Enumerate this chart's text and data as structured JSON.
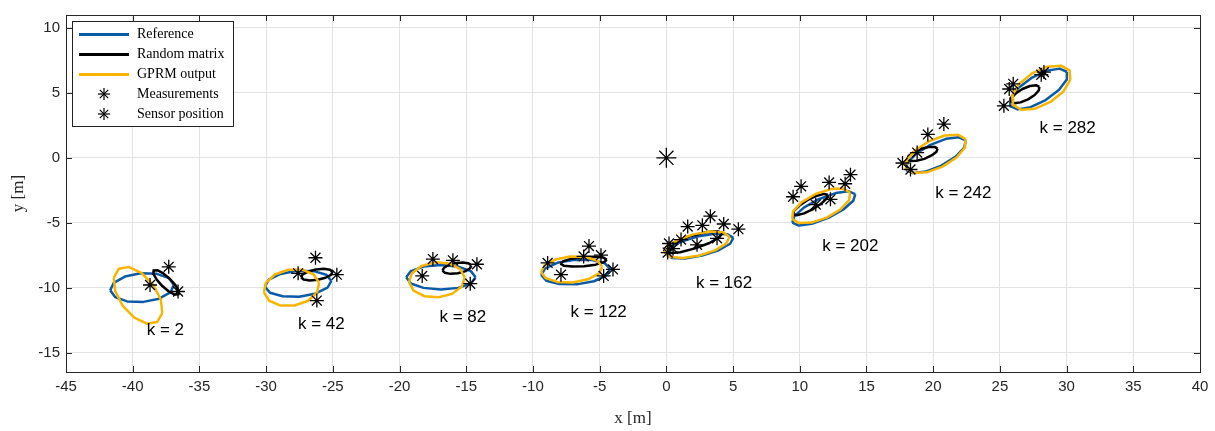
{
  "chart_data": {
    "type": "line",
    "xlabel": "x [m]",
    "ylabel": "y [m]",
    "xlim": [
      -45,
      40
    ],
    "ylim": [
      -16.5,
      11
    ],
    "xticks": [
      -45,
      -40,
      -35,
      -30,
      -25,
      -20,
      -15,
      -10,
      -5,
      0,
      5,
      10,
      15,
      20,
      25,
      30,
      35,
      40
    ],
    "yticks": [
      -15,
      -10,
      -5,
      0,
      5,
      10
    ],
    "grid": true,
    "legend": "top left",
    "series": [
      {
        "name": "Reference",
        "color": "#0b5aa8",
        "marker": "none",
        "x": [
          -36.91,
          -37.28,
          -38.19,
          -39.4,
          -40.58,
          -41.42,
          -41.69
        ],
        "values": [
          -9.79,
          -9.27,
          -8.94,
          -8.9,
          -9.15,
          -9.63,
          -10.21
        ]
      },
      {
        "color": "#0b5aa8",
        "marker": "none",
        "x": [
          -41.69,
          -41.32,
          -40.41,
          -39.2,
          -38.02,
          -37.18,
          -36.91
        ],
        "values": [
          -10.21,
          -10.73,
          -11.06,
          -11.1,
          -10.85,
          -10.37,
          -9.79
        ]
      },
      {
        "color": "#0b5aa8",
        "marker": "none",
        "x": [
          -25.11,
          -25.49,
          -26.43,
          -27.69,
          -28.92,
          -29.8,
          -30.09
        ],
        "values": [
          -9.48,
          -9.01,
          -8.73,
          -8.7,
          -8.95,
          -9.39,
          -9.92
        ]
      },
      {
        "color": "#0b5aa8",
        "marker": "none",
        "x": [
          -30.09,
          -29.71,
          -28.77,
          -27.51,
          -26.28,
          -25.4,
          -25.11
        ],
        "values": [
          -9.92,
          -10.39,
          -10.67,
          -10.7,
          -10.45,
          -10.01,
          -9.48
        ]
      },
      {
        "color": "#0b5aa8",
        "marker": "none",
        "x": [
          -14.3,
          -14.65,
          -15.6,
          -16.9,
          -18.2,
          -19.15,
          -19.5
        ],
        "values": [
          -9.2,
          -8.73,
          -8.38,
          -8.25,
          -8.38,
          -8.73,
          -9.2
        ]
      },
      {
        "color": "#0b5aa8",
        "marker": "none",
        "x": [
          -19.5,
          -19.15,
          -18.2,
          -16.9,
          -15.6,
          -14.65,
          -14.3
        ],
        "values": [
          -9.2,
          -9.68,
          -10.02,
          -10.15,
          -10.02,
          -9.68,
          -9.2
        ]
      },
      {
        "color": "#0b5aa8",
        "marker": "none",
        "x": [
          -4.21,
          -4.6,
          -5.58,
          -6.88,
          -8.17,
          -9.08,
          -9.39
        ],
        "values": [
          -8.57,
          -8.13,
          -7.87,
          -7.85,
          -8.09,
          -8.52,
          -9.03
        ]
      },
      {
        "color": "#0b5aa8",
        "marker": "none",
        "x": [
          -9.39,
          -9.0,
          -8.02,
          -6.72,
          -5.43,
          -4.52,
          -4.21
        ],
        "values": [
          -9.03,
          -9.47,
          -9.73,
          -9.75,
          -9.51,
          -9.08,
          -8.57
        ]
      },
      {
        "color": "#0b5aa8",
        "marker": "none",
        "x": [
          5.02,
          4.59,
          3.6,
          2.32,
          1.08,
          0.22,
          -0.02
        ],
        "values": [
          -6.17,
          -5.89,
          -5.85,
          -6.07,
          -6.48,
          -6.98,
          -7.43
        ]
      },
      {
        "color": "#0b5aa8",
        "marker": "none",
        "x": [
          -0.02,
          0.41,
          1.4,
          2.68,
          3.92,
          4.78,
          5.02
        ],
        "values": [
          -7.43,
          -7.71,
          -7.75,
          -7.53,
          -7.12,
          -6.62,
          -6.17
        ]
      },
      {
        "color": "#0b5aa8",
        "marker": "none",
        "x": [
          14.16,
          13.67,
          12.69,
          11.46,
          10.33,
          9.59,
          9.44
        ],
        "values": [
          -2.8,
          -2.58,
          -2.72,
          -3.17,
          -3.82,
          -4.49,
          -5.0
        ]
      },
      {
        "color": "#0b5aa8",
        "marker": "none",
        "x": [
          9.44,
          9.93,
          10.91,
          12.14,
          13.27,
          14.01,
          14.16
        ],
        "values": [
          -5.0,
          -5.22,
          -5.08,
          -4.63,
          -3.98,
          -3.31,
          -2.8
        ]
      },
      {
        "color": "#0b5aa8",
        "marker": "none",
        "x": [
          22.43,
          21.92,
          20.96,
          19.79,
          18.73,
          18.07,
          17.97
        ],
        "values": [
          1.34,
          1.58,
          1.46,
          1.0,
          0.33,
          -0.38,
          -0.94
        ]
      },
      {
        "color": "#0b5aa8",
        "marker": "none",
        "x": [
          17.97,
          18.48,
          19.44,
          20.61,
          21.67,
          22.33,
          22.43
        ],
        "values": [
          -0.94,
          -1.18,
          -1.06,
          -0.6,
          0.07,
          0.78,
          1.34
        ]
      },
      {
        "color": "#0b5aa8",
        "marker": "none",
        "x": [
          30.02,
          29.47,
          28.5,
          27.37,
          26.38,
          25.8,
          25.78
        ],
        "values": [
          6.63,
          6.87,
          6.7,
          6.15,
          5.37,
          4.58,
          3.98
        ]
      },
      {
        "color": "#0b5aa8",
        "marker": "none",
        "x": [
          25.78,
          26.33,
          27.3,
          28.43,
          29.42,
          30.0,
          30.02
        ],
        "values": [
          3.98,
          3.73,
          3.9,
          4.45,
          5.23,
          6.02,
          6.63
        ]
      },
      {
        "name": "Random matrix",
        "color": "#000000",
        "marker": "none",
        "x": [
          -36.56,
          -36.8,
          -37.22,
          -37.71,
          -38.15,
          -38.42,
          -38.44
        ],
        "values": [
          -10.25,
          -9.81,
          -9.32,
          -8.9,
          -8.66,
          -8.68,
          -8.95
        ]
      },
      {
        "color": "#000000",
        "marker": "none",
        "x": [
          -38.44,
          -38.2,
          -37.78,
          -37.29,
          -36.85,
          -36.58,
          -36.56
        ],
        "values": [
          -8.95,
          -9.39,
          -9.88,
          -10.3,
          -10.54,
          -10.52,
          -10.25
        ]
      },
      {
        "color": "#000000",
        "marker": "none",
        "x": [
          -25.02,
          -25.21,
          -25.67,
          -26.27,
          -26.85,
          -27.26,
          -27.38
        ],
        "values": [
          -8.79,
          -8.62,
          -8.55,
          -8.61,
          -8.76,
          -8.98,
          -9.21
        ]
      },
      {
        "color": "#000000",
        "marker": "none",
        "x": [
          -27.38,
          -27.19,
          -26.73,
          -26.13,
          -25.55,
          -25.14,
          -25.02
        ],
        "values": [
          -9.21,
          -9.38,
          -9.45,
          -9.39,
          -9.24,
          -9.02,
          -8.79
        ]
      },
      {
        "color": "#000000",
        "marker": "none",
        "x": [
          -14.62,
          -14.8,
          -15.22,
          -15.77,
          -16.3,
          -16.67,
          -16.78
        ],
        "values": [
          -8.31,
          -8.14,
          -8.06,
          -8.11,
          -8.25,
          -8.47,
          -8.69
        ]
      },
      {
        "color": "#000000",
        "marker": "none",
        "x": [
          -16.78,
          -16.6,
          -16.18,
          -15.63,
          -15.1,
          -14.73,
          -14.62
        ],
        "values": [
          -8.69,
          -8.86,
          -8.94,
          -8.89,
          -8.75,
          -8.53,
          -8.31
        ]
      },
      {
        "color": "#000000",
        "marker": "none",
        "x": [
          -4.46,
          -4.71,
          -5.35,
          -6.23,
          -7.1,
          -7.72,
          -7.94
        ],
        "values": [
          -7.85,
          -7.69,
          -7.62,
          -7.65,
          -7.77,
          -7.96,
          -8.15
        ]
      },
      {
        "color": "#000000",
        "marker": "none",
        "x": [
          -7.94,
          -7.69,
          -7.05,
          -6.17,
          -5.3,
          -4.68,
          -4.46
        ],
        "values": [
          -8.15,
          -8.31,
          -8.38,
          -8.35,
          -8.23,
          -8.04,
          -7.85
        ]
      },
      {
        "color": "#000000",
        "marker": "none",
        "x": [
          4.19,
          3.82,
          2.96,
          1.85,
          0.77,
          0.03,
          -0.19
        ],
        "values": [
          -5.79,
          -5.65,
          -5.73,
          -6.02,
          -6.44,
          -6.88,
          -7.21
        ]
      },
      {
        "color": "#000000",
        "marker": "none",
        "x": [
          -0.19,
          0.18,
          1.04,
          2.15,
          3.23,
          3.97,
          4.19
        ],
        "values": [
          -7.21,
          -7.35,
          -7.27,
          -6.98,
          -6.56,
          -6.12,
          -5.79
        ]
      },
      {
        "color": "#000000",
        "marker": "none",
        "x": [
          12.1,
          11.83,
          11.28,
          10.6,
          9.98,
          9.57,
          9.5
        ],
        "values": [
          -2.85,
          -2.78,
          -2.92,
          -3.25,
          -3.68,
          -4.08,
          -4.35
        ]
      },
      {
        "color": "#000000",
        "marker": "none",
        "x": [
          9.5,
          9.77,
          10.32,
          11.0,
          11.62,
          12.03,
          12.1
        ],
        "values": [
          -4.35,
          -4.42,
          -4.28,
          -3.95,
          -3.52,
          -3.12,
          -2.85
        ]
      },
      {
        "color": "#000000",
        "marker": "none",
        "x": [
          20.33,
          20.11,
          19.65,
          19.06,
          18.52,
          18.15,
          18.07
        ],
        "values": [
          0.71,
          0.84,
          0.83,
          0.68,
          0.42,
          0.13,
          -0.11
        ]
      },
      {
        "color": "#000000",
        "marker": "none",
        "x": [
          18.07,
          18.29,
          18.75,
          19.34,
          19.88,
          20.25,
          20.33
        ],
        "values": [
          -0.11,
          -0.24,
          -0.23,
          -0.08,
          0.18,
          0.47,
          0.71
        ]
      },
      {
        "color": "#000000",
        "marker": "none",
        "x": [
          27.96,
          27.71,
          27.25,
          26.69,
          26.19,
          25.88,
          25.84
        ],
        "values": [
          5.46,
          5.59,
          5.53,
          5.3,
          4.96,
          4.61,
          4.34
        ]
      },
      {
        "color": "#000000",
        "marker": "none",
        "x": [
          25.84,
          26.09,
          26.55,
          27.11,
          27.61,
          27.92,
          27.96
        ],
        "values": [
          4.34,
          4.21,
          4.27,
          4.5,
          4.84,
          5.19,
          5.46
        ]
      },
      {
        "name": "GPRM output",
        "color": "#f7b500",
        "marker": "none",
        "x": [
          -37.78,
          -37.89,
          -38.45,
          -39.32,
          -40.27,
          -41.04,
          -41.42
        ],
        "values": [
          -11.97,
          -10.93,
          -9.8,
          -8.88,
          -8.42,
          -8.55,
          -9.23
        ]
      },
      {
        "color": "#f7b500",
        "marker": "none",
        "x": [
          -41.42,
          -41.31,
          -40.75,
          -39.88,
          -38.93,
          -38.17,
          -37.78
        ],
        "values": [
          -9.23,
          -10.27,
          -11.4,
          -12.32,
          -12.78,
          -12.65,
          -11.97
        ]
      },
      {
        "color": "#f7b500",
        "marker": "none",
        "x": [
          -26.03,
          -26.43,
          -27.28,
          -28.34,
          -29.35,
          -30.02,
          -30.17
        ],
        "values": [
          -9.64,
          -8.99,
          -8.62,
          -8.62,
          -8.99,
          -9.63,
          -10.37
        ]
      },
      {
        "color": "#f7b500",
        "marker": "none",
        "x": [
          -30.17,
          -29.77,
          -28.92,
          -27.86,
          -26.85,
          -26.18,
          -26.03
        ],
        "values": [
          -10.37,
          -11.01,
          -11.38,
          -11.38,
          -11.01,
          -10.37,
          -9.64
        ]
      },
      {
        "color": "#f7b500",
        "marker": "none",
        "x": [
          -15.11,
          -15.45,
          -16.26,
          -17.32,
          -18.35,
          -19.07,
          -19.29
        ],
        "values": [
          -9.22,
          -8.57,
          -8.14,
          -8.05,
          -8.33,
          -8.89,
          -9.58
        ]
      },
      {
        "color": "#f7b500",
        "marker": "none",
        "x": [
          -19.29,
          -18.95,
          -18.14,
          -17.08,
          -16.05,
          -15.33,
          -15.11
        ],
        "values": [
          -9.58,
          -10.23,
          -10.66,
          -10.75,
          -10.47,
          -9.91,
          -9.22
        ]
      },
      {
        "color": "#f7b500",
        "marker": "none",
        "x": [
          -4.81,
          -5.16,
          -6.03,
          -7.19,
          -8.32,
          -9.13,
          -9.39
        ],
        "values": [
          -8.4,
          -7.93,
          -7.64,
          -7.6,
          -7.84,
          -8.27,
          -8.8
        ]
      },
      {
        "color": "#f7b500",
        "marker": "none",
        "x": [
          -9.39,
          -9.04,
          -8.17,
          -7.01,
          -5.88,
          -5.07,
          -4.81
        ],
        "values": [
          -8.8,
          -9.27,
          -9.56,
          -9.6,
          -9.36,
          -8.93,
          -8.4
        ]
      },
      {
        "color": "#f7b500",
        "marker": "none",
        "x": [
          4.73,
          4.3,
          3.33,
          2.09,
          0.91,
          0.1,
          -0.13
        ],
        "values": [
          -6.1,
          -5.76,
          -5.68,
          -5.88,
          -6.29,
          -6.81,
          -7.3
        ]
      },
      {
        "color": "#f7b500",
        "marker": "none",
        "x": [
          -0.13,
          0.3,
          1.27,
          2.51,
          3.69,
          4.5,
          4.73
        ],
        "values": [
          -7.3,
          -7.64,
          -7.72,
          -7.52,
          -7.11,
          -6.59,
          -6.1
        ]
      },
      {
        "color": "#f7b500",
        "marker": "none",
        "x": [
          13.77,
          13.27,
          12.32,
          11.18,
          10.15,
          9.5,
          9.43
        ],
        "values": [
          -2.69,
          -2.37,
          -2.41,
          -2.79,
          -3.42,
          -4.13,
          -4.71
        ]
      },
      {
        "color": "#f7b500",
        "marker": "none",
        "x": [
          9.43,
          9.93,
          10.88,
          12.02,
          13.05,
          13.7,
          13.77
        ],
        "values": [
          -4.71,
          -5.03,
          -4.99,
          -4.61,
          -3.98,
          -3.27,
          -2.69
        ]
      },
      {
        "color": "#f7b500",
        "marker": "none",
        "x": [
          22.43,
          21.88,
          20.88,
          19.7,
          18.65,
          18.02,
          17.97
        ],
        "values": [
          1.44,
          1.77,
          1.72,
          1.28,
          0.58,
          -0.19,
          -0.84
        ]
      },
      {
        "color": "#f7b500",
        "marker": "none",
        "x": [
          17.97,
          18.52,
          19.52,
          20.7,
          21.75,
          22.38,
          22.43
        ],
        "values": [
          -0.84,
          -1.17,
          -1.12,
          -0.68,
          0.02,
          0.79,
          1.44
        ]
      },
      {
        "color": "#f7b500",
        "marker": "none",
        "x": [
          30.28,
          30.22,
          29.59,
          28.56,
          27.41,
          26.44,
          25.92
        ],
        "values": [
          6.0,
          6.73,
          7.1,
          7.02,
          6.5,
          5.69,
          4.8
        ]
      },
      {
        "color": "#f7b500",
        "marker": "none",
        "x": [
          25.92,
          25.98,
          26.61,
          27.64,
          28.79,
          29.76,
          30.28
        ],
        "values": [
          4.8,
          4.08,
          3.7,
          3.78,
          4.3,
          5.11,
          6.0
        ]
      },
      {
        "type": "scatter",
        "name": "Measurements",
        "color": "#000000",
        "marker": "cross",
        "x": [
          -37.3,
          -38.7,
          -36.6,
          -26.3,
          -27.6,
          -24.7,
          -26.2,
          -17.5,
          -18.3,
          -16.0,
          -14.2,
          -14.7,
          -5.8,
          -4.9,
          -4.0,
          -8.9,
          -7.9,
          -4.7,
          -6.2,
          3.3,
          5.4,
          1.6,
          2.7,
          4.3,
          0.2,
          1.1,
          2.3,
          3.8,
          0.1,
          0.5,
          13.8,
          12.2,
          10.1,
          9.5,
          11.2,
          13.4,
          12.3,
          20.8,
          19.6,
          17.7,
          18.3,
          18.8,
          26.0,
          25.7,
          25.3,
          28.1,
          28.3
        ],
        "values": [
          -8.4,
          -9.8,
          -10.3,
          -7.7,
          -8.9,
          -9.0,
          -11.0,
          -7.8,
          -9.1,
          -7.9,
          -8.2,
          -9.7,
          -6.8,
          -7.5,
          -8.6,
          -8.1,
          -9.0,
          -9.1,
          -7.6,
          -4.5,
          -5.5,
          -5.3,
          -5.2,
          -5.1,
          -6.6,
          -6.3,
          -6.7,
          -6.2,
          -7.3,
          -7.0,
          -1.3,
          -1.9,
          -2.2,
          -3.0,
          -3.6,
          -2.0,
          -3.2,
          2.6,
          1.8,
          -0.4,
          -0.9,
          0.4,
          5.7,
          5.3,
          4.0,
          6.4,
          6.6
        ]
      },
      {
        "type": "scatter",
        "name": "Sensor position",
        "color": "#000000",
        "marker": "cross",
        "x": [
          0
        ],
        "values": [
          0
        ]
      }
    ],
    "annotations": [
      {
        "text": "k = 2",
        "x": -39.2,
        "y": -11.1
      },
      {
        "text": "k = 42",
        "x": -27.51,
        "y": -10.7
      },
      {
        "text": "k = 82",
        "x": -16.9,
        "y": -10.15
      },
      {
        "text": "k = 122",
        "x": -6.72,
        "y": -9.75
      },
      {
        "text": "k = 162",
        "x": 2.68,
        "y": -7.53
      },
      {
        "text": "k = 202",
        "x": 12.14,
        "y": -4.63
      },
      {
        "text": "k = 242",
        "x": 20.61,
        "y": -0.6
      },
      {
        "text": "k = 282",
        "x": 28.43,
        "y": 4.45
      }
    ]
  }
}
